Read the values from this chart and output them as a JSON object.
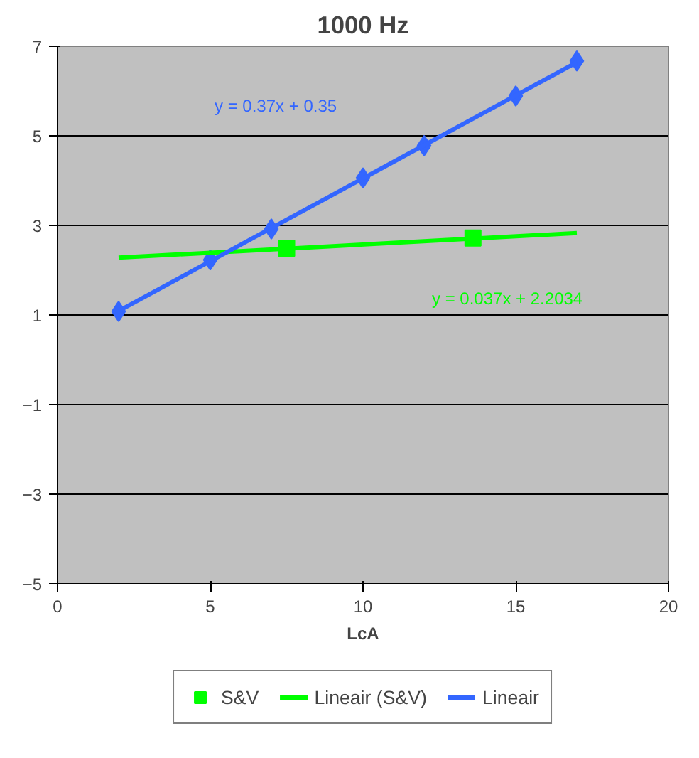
{
  "chart_data": {
    "type": "scatter",
    "title": "1000 Hz",
    "xlabel": "LcA",
    "xlim": [
      0,
      20
    ],
    "xticks": [
      0,
      5,
      10,
      15,
      20
    ],
    "ylim": [
      -5,
      7
    ],
    "yticks": [
      -5,
      -3,
      -1,
      1,
      3,
      5,
      7
    ],
    "grid": "y",
    "legend": "bottom",
    "series": [
      {
        "color": "#3366ff",
        "marker": "diamond",
        "x": [
          2,
          5,
          7,
          10,
          12,
          15,
          17
        ],
        "values": [
          1.08,
          2.23,
          2.92,
          4.06,
          4.78,
          5.89,
          6.67
        ]
      },
      {
        "name": "S&V",
        "color": "#00ff00",
        "marker": "square",
        "x": [
          7.5,
          13.6
        ],
        "values": [
          2.49,
          2.72
        ]
      },
      {
        "name": "Lineair (S&V)",
        "type": "line",
        "color": "#00ff00",
        "marker": "none",
        "x": [
          2,
          17
        ],
        "values": [
          2.28,
          2.83
        ]
      },
      {
        "name": "Lineair",
        "type": "line",
        "color": "#3366ff",
        "marker": "none",
        "x": [
          2,
          17
        ],
        "values": [
          1.09,
          6.64
        ]
      }
    ],
    "annotations": [
      "y = 0.37x + 0.35",
      "y = 0.037x + 2.2034"
    ]
  }
}
